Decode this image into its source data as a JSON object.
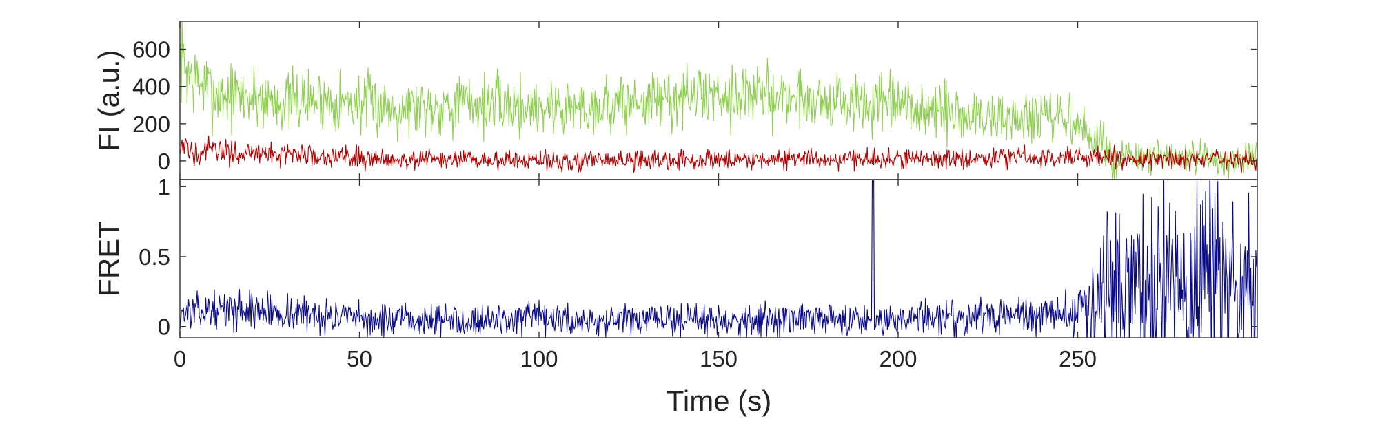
{
  "chart_data": [
    {
      "type": "line",
      "panel": "top",
      "ylabel": "FI (a.u.)",
      "xlabel": "",
      "xlim": [
        0,
        300
      ],
      "ylim": [
        -100,
        750
      ],
      "xticks": [
        0,
        50,
        100,
        150,
        200,
        250
      ],
      "xtick_labels_shown": false,
      "yticks": [
        0,
        200,
        400,
        600
      ],
      "ytick_labels": [
        "0",
        "200",
        "400",
        "600"
      ],
      "grid": false,
      "series": [
        {
          "color": "#8fd14f",
          "note_kind": "noisy trace; approximate local mean level",
          "x": [
            0,
            3,
            10,
            20,
            30,
            40,
            50,
            60,
            70,
            80,
            90,
            100,
            110,
            120,
            130,
            140,
            150,
            160,
            170,
            180,
            190,
            200,
            210,
            220,
            230,
            240,
            248,
            252,
            256,
            260,
            270,
            280,
            290,
            300
          ],
          "y": [
            560,
            450,
            360,
            340,
            320,
            330,
            310,
            290,
            300,
            310,
            300,
            290,
            285,
            300,
            320,
            340,
            360,
            355,
            345,
            320,
            300,
            290,
            260,
            240,
            230,
            220,
            220,
            150,
            90,
            20,
            15,
            10,
            10,
            10
          ],
          "noise_amplitude": [
            200,
            180,
            160,
            150,
            140,
            140,
            140,
            140,
            140,
            140,
            140,
            140,
            140,
            140,
            140,
            140,
            140,
            140,
            140,
            140,
            140,
            140,
            140,
            140,
            140,
            130,
            120,
            110,
            100,
            90,
            80,
            80,
            80,
            80
          ]
        },
        {
          "color": "#b30000",
          "note_kind": "noisy trace; approximate local mean level",
          "x": [
            0,
            10,
            20,
            30,
            40,
            50,
            60,
            80,
            100,
            120,
            140,
            160,
            180,
            200,
            220,
            240,
            250,
            260,
            280,
            300
          ],
          "y": [
            60,
            50,
            40,
            35,
            30,
            20,
            10,
            5,
            0,
            0,
            5,
            10,
            10,
            10,
            15,
            20,
            25,
            15,
            10,
            5
          ],
          "noise_amplitude": [
            60,
            60,
            55,
            55,
            50,
            50,
            45,
            45,
            45,
            45,
            45,
            45,
            45,
            45,
            45,
            45,
            45,
            45,
            45,
            45
          ]
        }
      ]
    },
    {
      "type": "line",
      "panel": "bottom",
      "ylabel": "FRET",
      "xlabel": "Time (s)",
      "xlim": [
        0,
        300
      ],
      "ylim": [
        -0.08,
        1.05
      ],
      "xticks": [
        0,
        50,
        100,
        150,
        200,
        250
      ],
      "xtick_labels": [
        "0",
        "50",
        "100",
        "150",
        "200",
        "250"
      ],
      "yticks": [
        0,
        0.5,
        1
      ],
      "ytick_labels": [
        "0",
        "0.5",
        "1"
      ],
      "grid": false,
      "series": [
        {
          "color": "#0a0a8c",
          "note_kind": "noisy trace; approximate local mean level",
          "x": [
            0,
            10,
            20,
            30,
            40,
            50,
            60,
            80,
            100,
            120,
            140,
            160,
            180,
            200,
            220,
            240,
            250,
            255,
            260,
            280,
            300
          ],
          "y": [
            0.1,
            0.12,
            0.12,
            0.1,
            0.08,
            0.05,
            0.04,
            0.05,
            0.05,
            0.04,
            0.05,
            0.05,
            0.05,
            0.06,
            0.07,
            0.08,
            0.1,
            0.2,
            0.3,
            0.3,
            0.3
          ],
          "noise_amplitude": [
            0.1,
            0.1,
            0.12,
            0.12,
            0.1,
            0.1,
            0.1,
            0.1,
            0.1,
            0.1,
            0.1,
            0.1,
            0.1,
            0.1,
            0.12,
            0.12,
            0.15,
            0.4,
            0.6,
            0.6,
            0.6
          ],
          "spikes": [
            [
              193,
              1.05
            ]
          ]
        }
      ]
    }
  ]
}
